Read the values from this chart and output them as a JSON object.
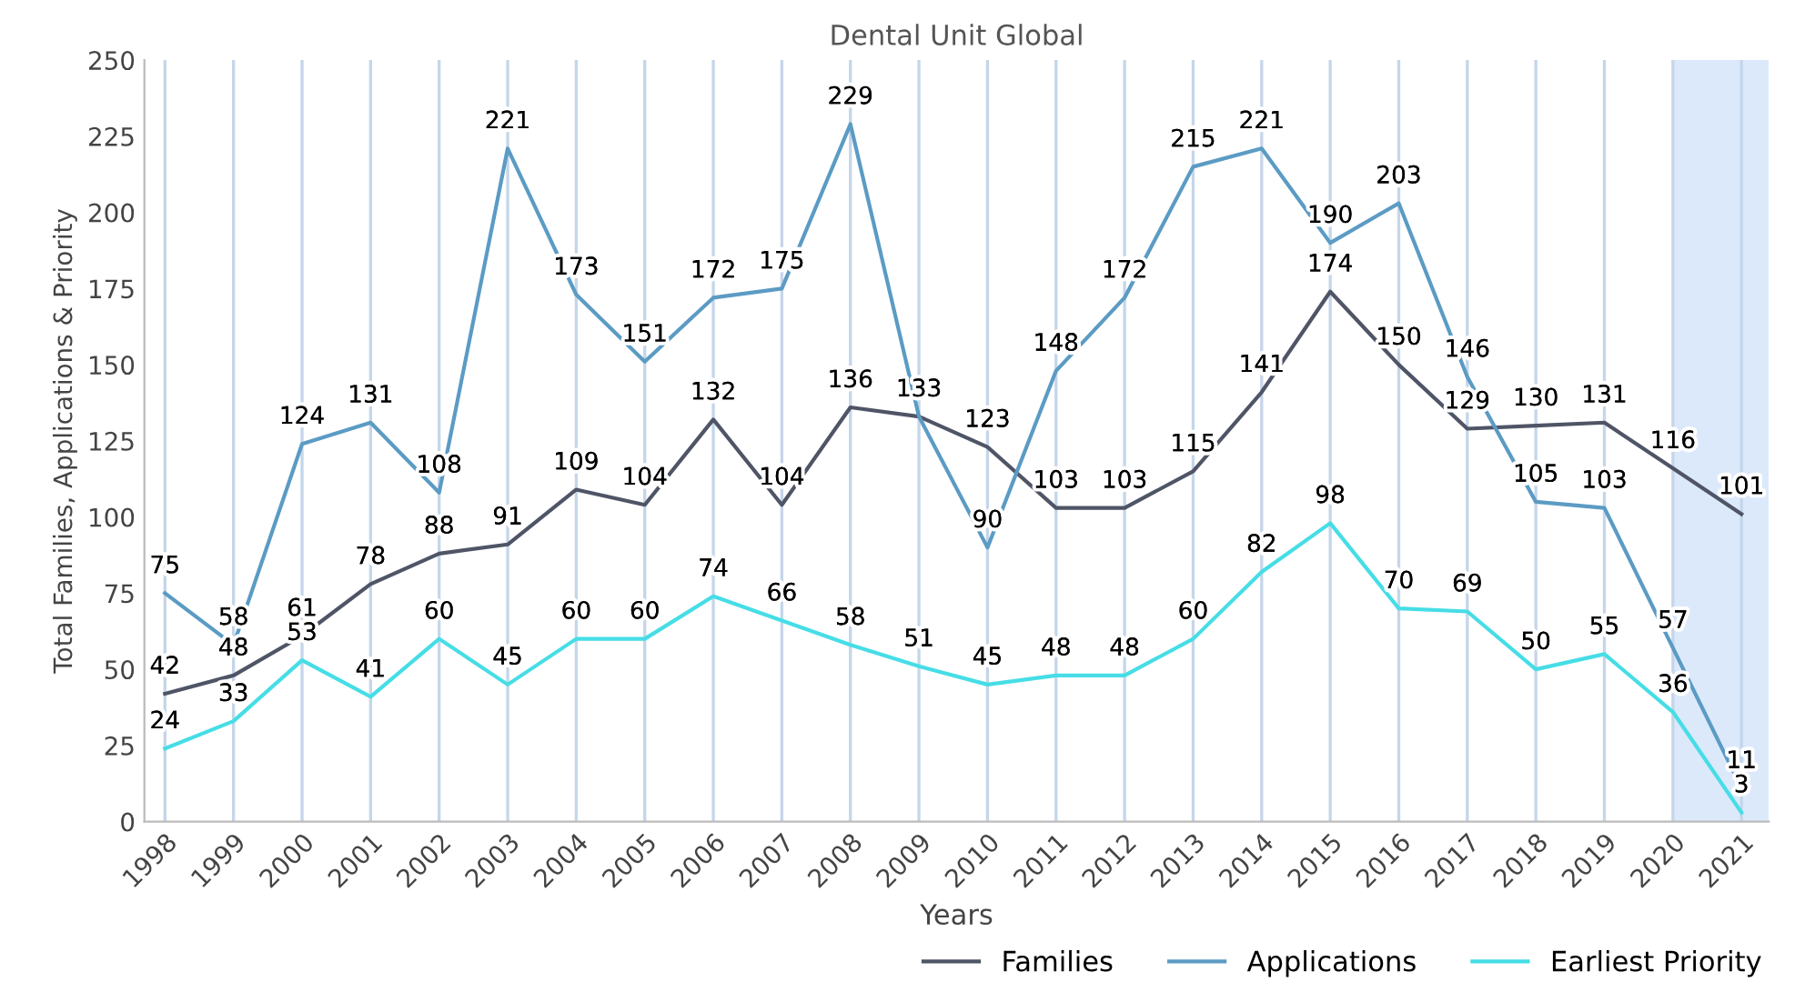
{
  "chart_data": {
    "type": "line",
    "title": "Dental Unit Global",
    "xlabel": "Years",
    "ylabel": "Total Families, Applications & Priority",
    "categories": [
      "1998",
      "1999",
      "2000",
      "2001",
      "2002",
      "2003",
      "2004",
      "2005",
      "2006",
      "2007",
      "2008",
      "2009",
      "2010",
      "2011",
      "2012",
      "2013",
      "2014",
      "2015",
      "2016",
      "2017",
      "2018",
      "2019",
      "2020",
      "2021"
    ],
    "series": [
      {
        "name": "Families",
        "color": "#4f5566",
        "values": [
          42,
          48,
          61,
          78,
          88,
          91,
          109,
          104,
          132,
          104,
          136,
          133,
          123,
          103,
          103,
          115,
          141,
          174,
          150,
          129,
          130,
          131,
          116,
          101
        ]
      },
      {
        "name": "Applications",
        "color": "#5b9bc4",
        "values": [
          75,
          58,
          124,
          131,
          108,
          221,
          173,
          151,
          172,
          175,
          229,
          133,
          90,
          148,
          172,
          215,
          221,
          190,
          203,
          146,
          105,
          103,
          57,
          11
        ],
        "value_labels": [
          "75",
          "58",
          "124",
          "131",
          "108",
          "221",
          "173",
          "151",
          "172",
          "175",
          "229",
          null,
          "90",
          "148",
          "172",
          "215",
          "221",
          "190",
          "203",
          "146",
          "105",
          "103",
          "57",
          "11"
        ]
      },
      {
        "name": "Earliest Priority",
        "color": "#46dde6",
        "values": [
          24,
          33,
          53,
          41,
          60,
          45,
          60,
          60,
          74,
          66,
          58,
          51,
          45,
          48,
          48,
          60,
          82,
          98,
          70,
          69,
          50,
          55,
          36,
          3
        ]
      }
    ],
    "ylim": [
      0,
      250
    ],
    "yticks": [
      0,
      25,
      50,
      75,
      100,
      125,
      150,
      175,
      200,
      225,
      250
    ],
    "bands": [
      {
        "axis": "x",
        "from": "2020",
        "to": "2021",
        "color": "#dce9fb"
      }
    ],
    "grid": "x",
    "legend": "bottom right",
    "data_labels": true,
    "marker": "none",
    "line_style": "solid"
  }
}
